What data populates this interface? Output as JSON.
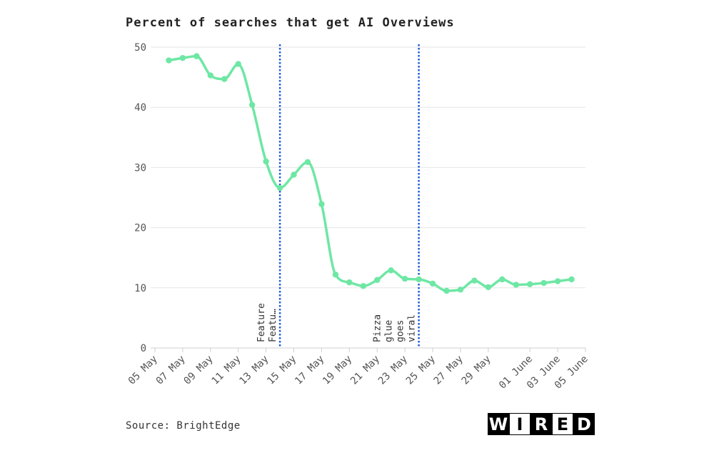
{
  "chart_data": {
    "type": "line",
    "title": "Percent of searches that get AI Overviews",
    "xlabel": "",
    "ylabel": "",
    "x_axis_type": "date",
    "x": [
      "2024-05-06",
      "2024-05-07",
      "2024-05-08",
      "2024-05-09",
      "2024-05-10",
      "2024-05-11",
      "2024-05-12",
      "2024-05-13",
      "2024-05-14",
      "2024-05-15",
      "2024-05-16",
      "2024-05-17",
      "2024-05-18",
      "2024-05-19",
      "2024-05-20",
      "2024-05-21",
      "2024-05-22",
      "2024-05-23",
      "2024-05-24",
      "2024-05-25",
      "2024-05-26",
      "2024-05-27",
      "2024-05-28",
      "2024-05-29",
      "2024-05-30",
      "2024-05-31",
      "2024-06-01",
      "2024-06-02",
      "2024-06-03",
      "2024-06-04"
    ],
    "series": [
      {
        "values": [
          47.8,
          48.2,
          48.5,
          45.3,
          44.7,
          47.2,
          40.4,
          31.0,
          26.6,
          28.8,
          30.9,
          23.9,
          12.2,
          10.9,
          10.3,
          11.3,
          12.9,
          11.5,
          11.4,
          10.7,
          9.5,
          9.7,
          11.2,
          10.1,
          11.4,
          10.5,
          10.6,
          10.8,
          11.1,
          11.4
        ]
      }
    ],
    "ylim": [
      0,
      50
    ],
    "y_ticks": [
      0,
      10,
      20,
      30,
      40,
      50
    ],
    "x_tick_labels": [
      "05 May",
      "07 May",
      "09 May",
      "11 May",
      "13 May",
      "15 May",
      "17 May",
      "19 May",
      "21 May",
      "23 May",
      "25 May",
      "27 May",
      "29 May",
      "01 June",
      "03 June",
      "05 June"
    ],
    "x_tick_dates": [
      "2024-05-05",
      "2024-05-07",
      "2024-05-09",
      "2024-05-11",
      "2024-05-13",
      "2024-05-15",
      "2024-05-17",
      "2024-05-19",
      "2024-05-21",
      "2024-05-23",
      "2024-05-25",
      "2024-05-27",
      "2024-05-29",
      "2024-06-01",
      "2024-06-03",
      "2024-06-05"
    ],
    "x_range": [
      "2024-05-05",
      "2024-06-05"
    ],
    "grid": true,
    "annotations": [
      {
        "date": "2024-05-14",
        "lines": [
          "Feature",
          "Featu…"
        ]
      },
      {
        "date": "2024-05-24",
        "lines": [
          "Pizza",
          "glue",
          "goes",
          "viral"
        ]
      }
    ],
    "colors": {
      "line": "#6ee7a4",
      "annotation": "#1f5bd6",
      "grid": "#e6e6e6"
    }
  },
  "source": "Source: BrightEdge",
  "logo": {
    "letters": [
      "W",
      "I",
      "R",
      "E",
      "D"
    ],
    "dark": [
      true,
      false,
      true,
      false,
      true
    ]
  }
}
